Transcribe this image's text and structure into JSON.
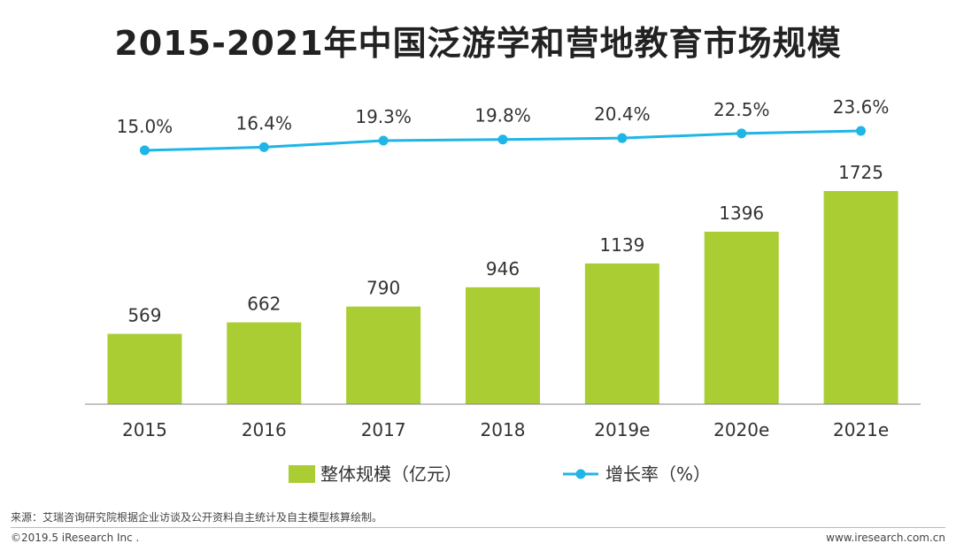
{
  "title": "2015-2021年中国泛游学和营地教育市场规模",
  "chart_data": {
    "type": "bar+line",
    "categories": [
      "2015",
      "2016",
      "2017",
      "2018",
      "2019e",
      "2020e",
      "2021e"
    ],
    "series": [
      {
        "name": "整体规模（亿元）",
        "type": "bar",
        "color": "#a9cd32",
        "values": [
          569,
          662,
          790,
          946,
          1139,
          1396,
          1725
        ]
      },
      {
        "name": "增长率（%）",
        "type": "line",
        "color": "#1fb5e6",
        "values": [
          15.0,
          16.4,
          19.3,
          19.8,
          20.4,
          22.5,
          23.6
        ],
        "labels": [
          "15.0%",
          "16.4%",
          "19.3%",
          "19.8%",
          "20.4%",
          "22.5%",
          "23.6%"
        ]
      }
    ],
    "legend_position": "bottom",
    "grid": false
  },
  "footer": {
    "source": "来源：艾瑞咨询研究院根据企业访谈及公开资料自主统计及自主模型核算绘制。",
    "copyright": "©2019.5 iResearch Inc .",
    "website": "www.iresearch.com.cn"
  }
}
